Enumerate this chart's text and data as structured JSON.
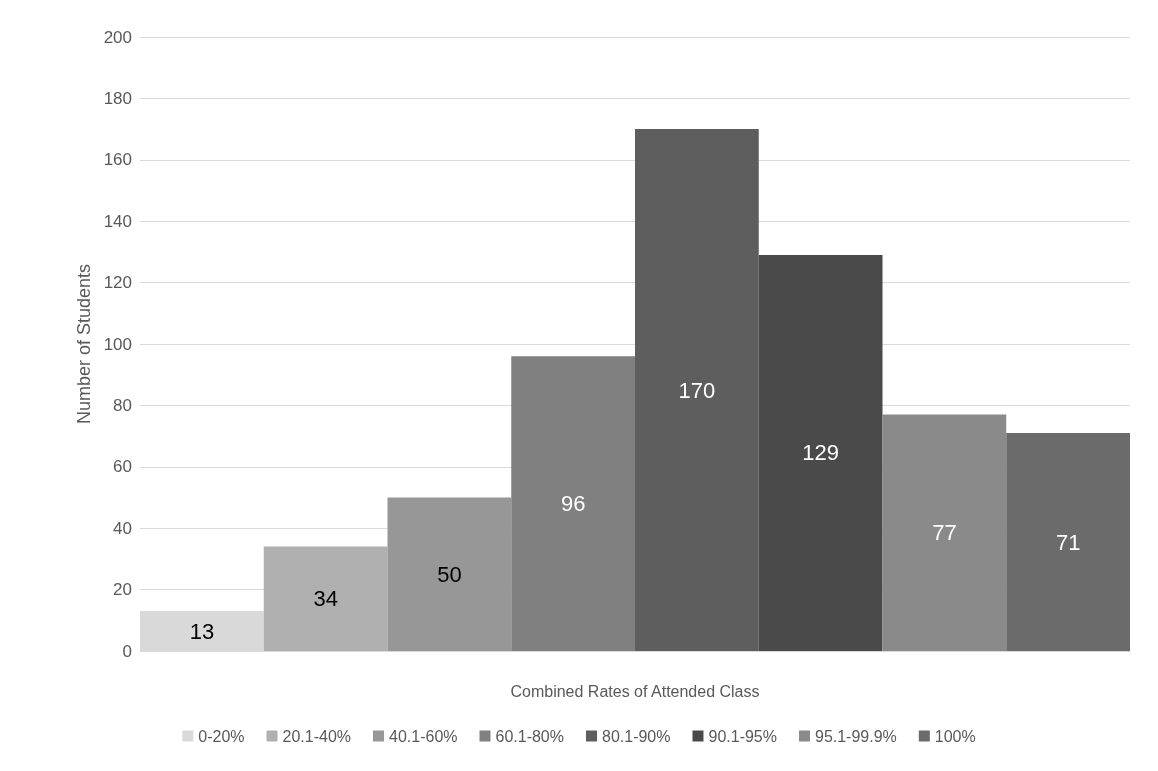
{
  "chart_data": {
    "type": "bar",
    "xlabel": "Combined Rates of Attended Class",
    "ylabel": "Number of Students",
    "categories": [
      null
    ],
    "series": [
      {
        "name": "0-20%",
        "color": "#d9d9d9",
        "values": [
          13
        ]
      },
      {
        "name": "20.1-40%",
        "color": "#b0b0b0",
        "values": [
          34
        ]
      },
      {
        "name": "40.1-60%",
        "color": "#979797",
        "values": [
          50
        ]
      },
      {
        "name": "60.1-80%",
        "color": "#808080",
        "values": [
          96
        ]
      },
      {
        "name": "80.1-90%",
        "color": "#5e5e5e",
        "values": [
          170
        ]
      },
      {
        "name": "90.1-95%",
        "color": "#4a4a4a",
        "values": [
          129
        ]
      },
      {
        "name": "95.1-99.9%",
        "color": "#8a8a8a",
        "values": [
          77
        ]
      },
      {
        "name": "100%",
        "color": "#6b6b6b",
        "values": [
          71
        ]
      }
    ],
    "ylim": [
      0,
      200
    ],
    "yticks": [
      0,
      20,
      40,
      60,
      80,
      100,
      120,
      140,
      160,
      180,
      200
    ],
    "grid": "y",
    "legend": "bottom",
    "data_labels": true
  }
}
